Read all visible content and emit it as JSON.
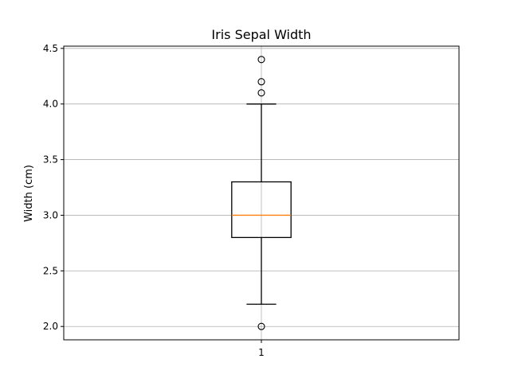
{
  "chart_data": {
    "type": "box",
    "title": "Iris Sepal Width",
    "xlabel": "",
    "ylabel": "Width (cm)",
    "ylim": [
      1.88,
      4.52
    ],
    "yticks": [
      "2.0",
      "2.5",
      "3.0",
      "3.5",
      "4.0",
      "4.5"
    ],
    "categories": [
      "1"
    ],
    "grid": true,
    "boxes": [
      {
        "category": "1",
        "whisker_low": 2.2,
        "q1": 2.8,
        "median": 3.0,
        "q3": 3.3,
        "whisker_high": 4.0,
        "outliers": [
          2.0,
          4.1,
          4.2,
          4.4
        ]
      }
    ],
    "colors": {
      "box": "#000000",
      "median": "#ff7f0e",
      "grid": "#b0b0b0"
    }
  }
}
